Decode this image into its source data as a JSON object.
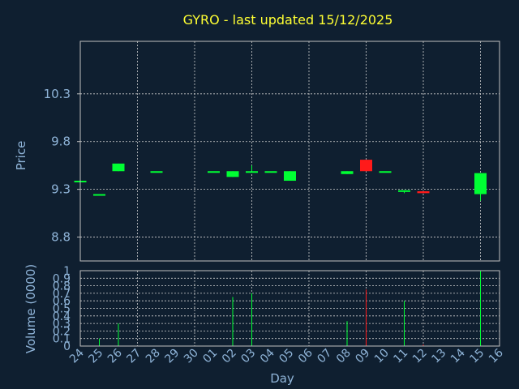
{
  "chart_data": {
    "type": "candlestick",
    "title": "GYRO - last updated 15/12/2025",
    "xlabel": "Day",
    "price_panel": {
      "ylabel": "Price",
      "ylim": [
        8.55,
        10.85
      ],
      "yticks": [
        8.8,
        9.3,
        9.8,
        10.3
      ],
      "ytick_labels": [
        "8.8",
        "9.3",
        "9.8",
        "10.3"
      ],
      "grid": true
    },
    "volume_panel": {
      "ylabel": "Volume (0000)",
      "ylim": [
        0,
        1
      ],
      "yticks": [
        0,
        0.1,
        0.2,
        0.3,
        0.4,
        0.5,
        0.6,
        0.7,
        0.8,
        0.9,
        1
      ],
      "ytick_labels": [
        "0",
        "0.1",
        "0.2",
        "0.3",
        "0.4",
        "0.5",
        "0.6",
        "0.7",
        "0.8",
        "0.9",
        "1"
      ],
      "grid": true
    },
    "categories": [
      "24",
      "25",
      "26",
      "27",
      "28",
      "29",
      "30",
      "01",
      "02",
      "03",
      "04",
      "05",
      "06",
      "07",
      "08",
      "09",
      "10",
      "11",
      "12",
      "13",
      "14",
      "15",
      "16"
    ],
    "candles": [
      {
        "x": "24",
        "open": 9.39,
        "close": 9.39,
        "high": 9.39,
        "low": 9.39,
        "volume": 0.0
      },
      {
        "x": "25",
        "open": 9.25,
        "close": 9.25,
        "high": 9.25,
        "low": 9.25,
        "volume": 0.1
      },
      {
        "x": "26",
        "open": 9.49,
        "close": 9.57,
        "high": 9.57,
        "low": 9.49,
        "volume": 0.3
      },
      {
        "x": "28",
        "open": 9.49,
        "close": 9.49,
        "high": 9.49,
        "low": 9.49,
        "volume": 0.0
      },
      {
        "x": "01",
        "open": 9.49,
        "close": 9.49,
        "high": 9.49,
        "low": 9.49,
        "volume": 0.0
      },
      {
        "x": "02",
        "open": 9.43,
        "close": 9.49,
        "high": 9.49,
        "low": 9.43,
        "volume": 0.65
      },
      {
        "x": "03",
        "open": 9.49,
        "close": 9.49,
        "high": 9.55,
        "low": 9.49,
        "volume": 0.7
      },
      {
        "x": "04",
        "open": 9.49,
        "close": 9.49,
        "high": 9.49,
        "low": 9.49,
        "volume": 0.0
      },
      {
        "x": "05",
        "open": 9.39,
        "close": 9.49,
        "high": 9.49,
        "low": 9.39,
        "volume": 0.0
      },
      {
        "x": "08",
        "open": 9.46,
        "close": 9.49,
        "high": 9.49,
        "low": 9.46,
        "volume": 0.33
      },
      {
        "x": "09",
        "open": 9.61,
        "close": 9.49,
        "high": 9.61,
        "low": 9.49,
        "volume": 0.75
      },
      {
        "x": "10",
        "open": 9.49,
        "close": 9.49,
        "high": 9.49,
        "low": 9.49,
        "volume": 0.0
      },
      {
        "x": "11",
        "open": 9.29,
        "close": 9.29,
        "high": 9.29,
        "low": 9.26,
        "volume": 0.6
      },
      {
        "x": "12",
        "open": 9.28,
        "close": 9.26,
        "high": 9.28,
        "low": 9.26,
        "volume": 0.02
      },
      {
        "x": "15",
        "open": 9.25,
        "close": 9.47,
        "high": 9.47,
        "low": 9.18,
        "volume": 1.0
      }
    ],
    "colors": {
      "up": "#00ff33",
      "down": "#ff1a1a",
      "background": "#0f1f30"
    }
  }
}
